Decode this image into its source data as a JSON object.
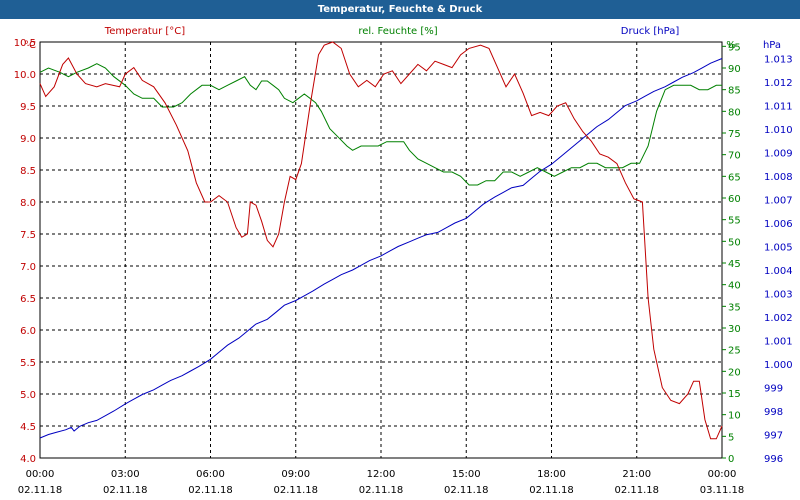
{
  "chart_data": {
    "type": "line",
    "title": "Temperatur, Feuchte & Druck",
    "series_labels": {
      "temperature": "Temperatur [°C]",
      "humidity": "rel. Feuchte [%]",
      "pressure": "Druck [hPa]"
    },
    "colors": {
      "temperature": "#c00000",
      "humidity": "#008000",
      "pressure": "#0000c0",
      "title_bg": "#1f5f95"
    },
    "axes": {
      "temperature": {
        "unit": "°C",
        "min": 4.0,
        "max": 10.5,
        "ticks": [
          "4.0",
          "4.5",
          "5.0",
          "5.5",
          "6.0",
          "6.5",
          "7.0",
          "7.5",
          "8.0",
          "8.5",
          "9.0",
          "9.5",
          "10.0",
          "10.5"
        ]
      },
      "humidity": {
        "unit": "%",
        "min": 0,
        "max": 96,
        "ticks": [
          "0",
          "5",
          "10",
          "15",
          "20",
          "25",
          "30",
          "35",
          "40",
          "45",
          "50",
          "55",
          "60",
          "65",
          "70",
          "75",
          "80",
          "85",
          "90",
          "95"
        ]
      },
      "pressure": {
        "unit": "hPa",
        "min": 996,
        "max": 1013.7,
        "ticks": [
          "996",
          "997",
          "998",
          "999",
          "1.000",
          "1.001",
          "1.002",
          "1.003",
          "1.004",
          "1.005",
          "1.006",
          "1.007",
          "1.008",
          "1.009",
          "1.010",
          "1.011",
          "1.012",
          "1.013"
        ]
      }
    },
    "x_ticks": [
      {
        "time": "00:00",
        "date": "02.11.18"
      },
      {
        "time": "03:00",
        "date": "02.11.18"
      },
      {
        "time": "06:00",
        "date": "02.11.18"
      },
      {
        "time": "09:00",
        "date": "02.11.18"
      },
      {
        "time": "12:00",
        "date": "02.11.18"
      },
      {
        "time": "15:00",
        "date": "02.11.18"
      },
      {
        "time": "18:00",
        "date": "02.11.18"
      },
      {
        "time": "21:00",
        "date": "02.11.18"
      },
      {
        "time": "00:00",
        "date": "03.11.18"
      }
    ],
    "x_range_hours": [
      0,
      24
    ],
    "temperature": [
      [
        0.0,
        9.85
      ],
      [
        0.2,
        9.65
      ],
      [
        0.5,
        9.8
      ],
      [
        0.8,
        10.15
      ],
      [
        1.0,
        10.25
      ],
      [
        1.3,
        10.0
      ],
      [
        1.6,
        9.85
      ],
      [
        2.0,
        9.8
      ],
      [
        2.3,
        9.85
      ],
      [
        2.8,
        9.8
      ],
      [
        3.0,
        10.0
      ],
      [
        3.3,
        10.1
      ],
      [
        3.6,
        9.9
      ],
      [
        4.0,
        9.8
      ],
      [
        4.4,
        9.55
      ],
      [
        4.8,
        9.2
      ],
      [
        5.2,
        8.8
      ],
      [
        5.5,
        8.3
      ],
      [
        5.8,
        8.0
      ],
      [
        6.0,
        8.0
      ],
      [
        6.3,
        8.1
      ],
      [
        6.6,
        8.0
      ],
      [
        6.9,
        7.6
      ],
      [
        7.1,
        7.45
      ],
      [
        7.3,
        7.5
      ],
      [
        7.4,
        8.0
      ],
      [
        7.6,
        7.95
      ],
      [
        7.8,
        7.7
      ],
      [
        8.0,
        7.4
      ],
      [
        8.2,
        7.3
      ],
      [
        8.4,
        7.5
      ],
      [
        8.6,
        8.0
      ],
      [
        8.8,
        8.4
      ],
      [
        9.0,
        8.35
      ],
      [
        9.2,
        8.6
      ],
      [
        9.5,
        9.5
      ],
      [
        9.8,
        10.3
      ],
      [
        10.0,
        10.45
      ],
      [
        10.3,
        10.5
      ],
      [
        10.6,
        10.4
      ],
      [
        10.9,
        10.0
      ],
      [
        11.2,
        9.8
      ],
      [
        11.5,
        9.9
      ],
      [
        11.8,
        9.8
      ],
      [
        12.1,
        10.0
      ],
      [
        12.4,
        10.05
      ],
      [
        12.7,
        9.85
      ],
      [
        13.0,
        10.0
      ],
      [
        13.3,
        10.15
      ],
      [
        13.6,
        10.05
      ],
      [
        13.9,
        10.2
      ],
      [
        14.2,
        10.15
      ],
      [
        14.5,
        10.1
      ],
      [
        14.8,
        10.3
      ],
      [
        15.1,
        10.4
      ],
      [
        15.5,
        10.45
      ],
      [
        15.8,
        10.4
      ],
      [
        16.1,
        10.1
      ],
      [
        16.4,
        9.8
      ],
      [
        16.7,
        10.0
      ],
      [
        17.0,
        9.7
      ],
      [
        17.3,
        9.35
      ],
      [
        17.6,
        9.4
      ],
      [
        17.9,
        9.35
      ],
      [
        18.2,
        9.5
      ],
      [
        18.5,
        9.55
      ],
      [
        18.8,
        9.3
      ],
      [
        19.1,
        9.1
      ],
      [
        19.4,
        8.95
      ],
      [
        19.7,
        8.75
      ],
      [
        20.0,
        8.7
      ],
      [
        20.3,
        8.6
      ],
      [
        20.6,
        8.3
      ],
      [
        20.9,
        8.05
      ],
      [
        21.2,
        8.0
      ],
      [
        21.4,
        6.5
      ],
      [
        21.6,
        5.7
      ],
      [
        21.9,
        5.1
      ],
      [
        22.2,
        4.9
      ],
      [
        22.5,
        4.85
      ],
      [
        22.8,
        5.0
      ],
      [
        23.0,
        5.2
      ],
      [
        23.2,
        5.2
      ],
      [
        23.4,
        4.6
      ],
      [
        23.6,
        4.3
      ],
      [
        23.8,
        4.3
      ],
      [
        24.0,
        4.5
      ]
    ],
    "humidity": [
      [
        0.0,
        89
      ],
      [
        0.3,
        90
      ],
      [
        0.7,
        89
      ],
      [
        1.0,
        88
      ],
      [
        1.3,
        89
      ],
      [
        1.7,
        90
      ],
      [
        2.0,
        91
      ],
      [
        2.3,
        90
      ],
      [
        2.6,
        88
      ],
      [
        3.0,
        86
      ],
      [
        3.3,
        84
      ],
      [
        3.6,
        83
      ],
      [
        4.0,
        83
      ],
      [
        4.3,
        81
      ],
      [
        4.7,
        81
      ],
      [
        5.0,
        82
      ],
      [
        5.3,
        84
      ],
      [
        5.7,
        86
      ],
      [
        6.0,
        86
      ],
      [
        6.3,
        85
      ],
      [
        6.6,
        86
      ],
      [
        6.9,
        87
      ],
      [
        7.2,
        88
      ],
      [
        7.4,
        86
      ],
      [
        7.6,
        85
      ],
      [
        7.8,
        87
      ],
      [
        8.0,
        87
      ],
      [
        8.2,
        86
      ],
      [
        8.4,
        85
      ],
      [
        8.6,
        83
      ],
      [
        8.9,
        82
      ],
      [
        9.1,
        83
      ],
      [
        9.3,
        84
      ],
      [
        9.5,
        83
      ],
      [
        9.7,
        82
      ],
      [
        9.9,
        80
      ],
      [
        10.2,
        76
      ],
      [
        10.5,
        74
      ],
      [
        10.8,
        72
      ],
      [
        11.0,
        71
      ],
      [
        11.3,
        72
      ],
      [
        11.6,
        72
      ],
      [
        11.9,
        72
      ],
      [
        12.2,
        73
      ],
      [
        12.5,
        73
      ],
      [
        12.8,
        73
      ],
      [
        13.0,
        71
      ],
      [
        13.3,
        69
      ],
      [
        13.6,
        68
      ],
      [
        13.9,
        67
      ],
      [
        14.2,
        66
      ],
      [
        14.5,
        66
      ],
      [
        14.8,
        65
      ],
      [
        15.1,
        63
      ],
      [
        15.4,
        63
      ],
      [
        15.7,
        64
      ],
      [
        16.0,
        64
      ],
      [
        16.3,
        66
      ],
      [
        16.6,
        66
      ],
      [
        16.9,
        65
      ],
      [
        17.2,
        66
      ],
      [
        17.5,
        67
      ],
      [
        17.8,
        66
      ],
      [
        18.1,
        65
      ],
      [
        18.4,
        66
      ],
      [
        18.7,
        67
      ],
      [
        19.0,
        67
      ],
      [
        19.3,
        68
      ],
      [
        19.6,
        68
      ],
      [
        19.9,
        67
      ],
      [
        20.2,
        67
      ],
      [
        20.5,
        67
      ],
      [
        20.8,
        68
      ],
      [
        21.1,
        68
      ],
      [
        21.4,
        72
      ],
      [
        21.7,
        80
      ],
      [
        22.0,
        85
      ],
      [
        22.3,
        86
      ],
      [
        22.6,
        86
      ],
      [
        22.9,
        86
      ],
      [
        23.2,
        85
      ],
      [
        23.5,
        85
      ],
      [
        23.8,
        86
      ],
      [
        24.0,
        86
      ]
    ],
    "pressure": [
      [
        0.0,
        996.85
      ],
      [
        0.3,
        997.0
      ],
      [
        0.6,
        997.1
      ],
      [
        0.9,
        997.2
      ],
      [
        1.1,
        997.3
      ],
      [
        1.2,
        997.15
      ],
      [
        1.4,
        997.35
      ],
      [
        1.7,
        997.5
      ],
      [
        2.0,
        997.6
      ],
      [
        2.3,
        997.8
      ],
      [
        2.6,
        998.0
      ],
      [
        3.0,
        998.3
      ],
      [
        3.3,
        998.5
      ],
      [
        3.6,
        998.7
      ],
      [
        4.0,
        998.9
      ],
      [
        4.3,
        999.1
      ],
      [
        4.6,
        999.3
      ],
      [
        5.0,
        999.5
      ],
      [
        5.3,
        999.7
      ],
      [
        5.6,
        999.9
      ],
      [
        6.0,
        1000.2
      ],
      [
        6.3,
        1000.5
      ],
      [
        6.6,
        1000.8
      ],
      [
        7.0,
        1001.1
      ],
      [
        7.3,
        1001.4
      ],
      [
        7.6,
        1001.7
      ],
      [
        8.0,
        1001.9
      ],
      [
        8.3,
        1002.2
      ],
      [
        8.6,
        1002.5
      ],
      [
        9.0,
        1002.7
      ],
      [
        9.3,
        1002.9
      ],
      [
        9.6,
        1003.1
      ],
      [
        10.0,
        1003.4
      ],
      [
        10.3,
        1003.6
      ],
      [
        10.6,
        1003.8
      ],
      [
        11.0,
        1004.0
      ],
      [
        11.3,
        1004.2
      ],
      [
        11.6,
        1004.4
      ],
      [
        12.0,
        1004.6
      ],
      [
        12.3,
        1004.8
      ],
      [
        12.6,
        1005.0
      ],
      [
        13.0,
        1005.2
      ],
      [
        13.3,
        1005.35
      ],
      [
        13.6,
        1005.5
      ],
      [
        14.0,
        1005.6
      ],
      [
        14.3,
        1005.8
      ],
      [
        14.6,
        1006.0
      ],
      [
        15.0,
        1006.2
      ],
      [
        15.3,
        1006.5
      ],
      [
        15.6,
        1006.8
      ],
      [
        16.0,
        1007.1
      ],
      [
        16.3,
        1007.3
      ],
      [
        16.6,
        1007.5
      ],
      [
        17.0,
        1007.6
      ],
      [
        17.3,
        1007.9
      ],
      [
        17.6,
        1008.2
      ],
      [
        18.0,
        1008.5
      ],
      [
        18.3,
        1008.8
      ],
      [
        18.6,
        1009.1
      ],
      [
        19.0,
        1009.5
      ],
      [
        19.3,
        1009.8
      ],
      [
        19.6,
        1010.1
      ],
      [
        20.0,
        1010.4
      ],
      [
        20.3,
        1010.7
      ],
      [
        20.6,
        1011.0
      ],
      [
        21.0,
        1011.2
      ],
      [
        21.3,
        1011.4
      ],
      [
        21.6,
        1011.6
      ],
      [
        22.0,
        1011.8
      ],
      [
        22.3,
        1012.0
      ],
      [
        22.6,
        1012.2
      ],
      [
        23.0,
        1012.4
      ],
      [
        23.3,
        1012.6
      ],
      [
        23.6,
        1012.8
      ],
      [
        24.0,
        1013.0
      ]
    ]
  }
}
